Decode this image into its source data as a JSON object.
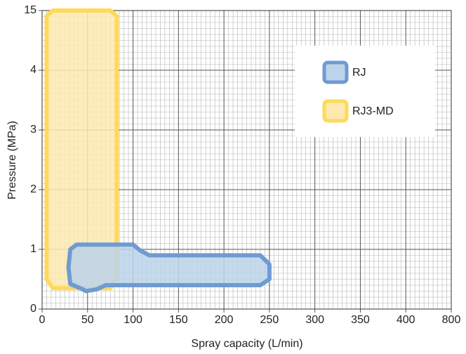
{
  "chart_data": {
    "type": "region",
    "xlabel": "Spray capacity (L/min)",
    "ylabel": "Pressure (MPa)",
    "xlim": [
      0,
      800
    ],
    "xticks": [
      0,
      50,
      100,
      150,
      200,
      250,
      300,
      350,
      400,
      800
    ],
    "ylim": [
      0,
      15
    ],
    "yticks": [
      0,
      1,
      2,
      3,
      4,
      15
    ],
    "grid": true,
    "legend": "upper right",
    "series": [
      {
        "name": "RJ3-MD",
        "color": "#ffd95a",
        "fill": "#fde9b0",
        "x": [
          12,
          75,
          82,
          82,
          75,
          12,
          5,
          5
        ],
        "y": [
          15,
          15,
          14,
          0.5,
          0.35,
          0.35,
          0.5,
          14
        ]
      },
      {
        "name": "RJ",
        "color": "#6e9bd1",
        "fill": "#bcd3ea",
        "x": [
          45,
          31,
          29,
          31,
          38,
          100,
          108,
          118,
          240,
          250,
          250,
          240,
          70,
          60,
          48
        ],
        "y": [
          0.33,
          0.42,
          0.7,
          1.0,
          1.08,
          1.08,
          0.98,
          0.9,
          0.9,
          0.75,
          0.5,
          0.4,
          0.4,
          0.33,
          0.3
        ]
      }
    ]
  }
}
